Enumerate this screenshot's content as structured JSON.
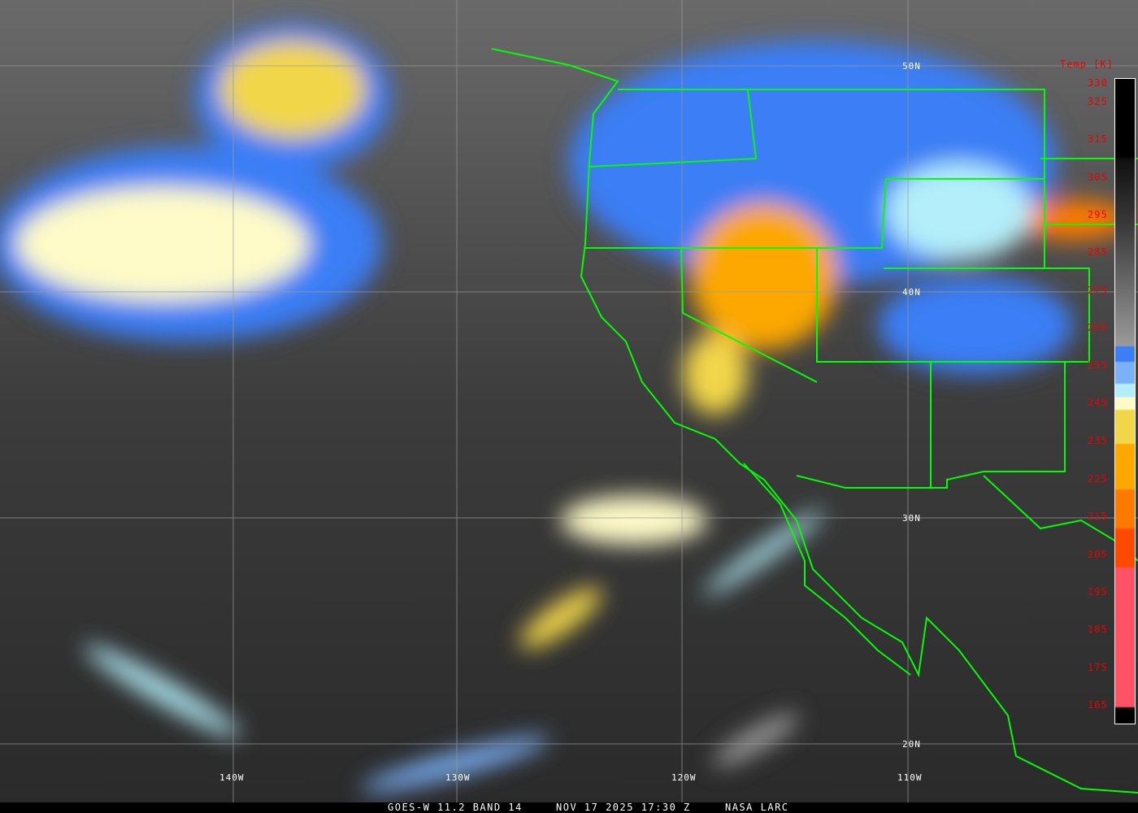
{
  "caption": {
    "satellite": "GOES-W 11.2 BAND 14",
    "datetime": "NOV 17 2025 17:30 Z",
    "source": "NASA LARC"
  },
  "legend": {
    "title": "Temp [K]",
    "ticks": [
      "330",
      "325",
      "315",
      "305",
      "295",
      "285",
      "275",
      "265",
      "255",
      "245",
      "235",
      "225",
      "215",
      "205",
      "195",
      "185",
      "175",
      "165"
    ]
  },
  "grid": {
    "latitudes": [
      "50N",
      "40N",
      "30N",
      "20N"
    ],
    "longitudes": [
      "140W",
      "130W",
      "120W",
      "110W"
    ]
  },
  "colors": {
    "borders": "#00ff00",
    "gridlines": "#9a9a9a",
    "legend_text": "#ee0000"
  }
}
